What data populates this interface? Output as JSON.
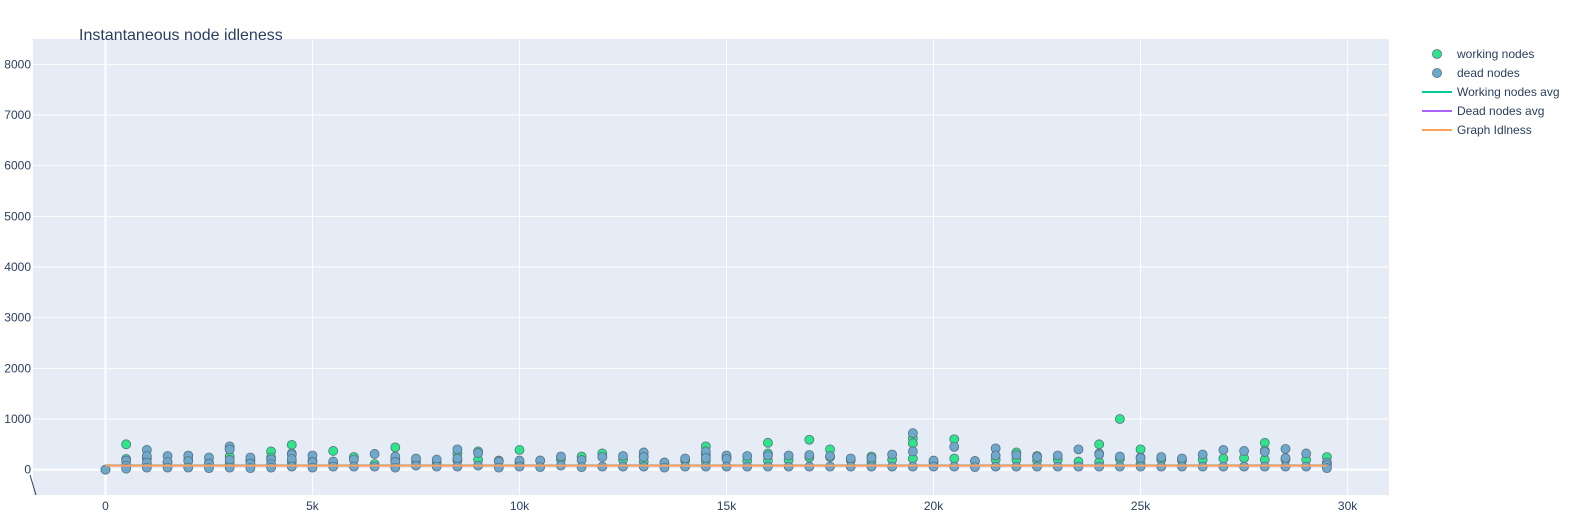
{
  "chart_data": {
    "type": "scatter",
    "title": "Instantaneous node idleness",
    "xlabel": "",
    "ylabel": "",
    "xlim": [
      -1750,
      31000
    ],
    "ylim": [
      -500,
      8500
    ],
    "x_ticks": [
      {
        "value": 0,
        "label": "0"
      },
      {
        "value": 5000,
        "label": "5k"
      },
      {
        "value": 10000,
        "label": "10k"
      },
      {
        "value": 15000,
        "label": "15k"
      },
      {
        "value": 20000,
        "label": "20k"
      },
      {
        "value": 25000,
        "label": "25k"
      },
      {
        "value": 30000,
        "label": "30k"
      }
    ],
    "y_ticks": [
      {
        "value": 0,
        "label": "0"
      },
      {
        "value": 1000,
        "label": "1000"
      },
      {
        "value": 2000,
        "label": "2000"
      },
      {
        "value": 3000,
        "label": "3000"
      },
      {
        "value": 4000,
        "label": "4000"
      },
      {
        "value": 5000,
        "label": "5000"
      },
      {
        "value": 6000,
        "label": "6000"
      },
      {
        "value": 7000,
        "label": "7000"
      },
      {
        "value": 8000,
        "label": "8000"
      }
    ],
    "grid": true,
    "legend_position": "top-right",
    "colors": {
      "plot_bg": "#e5ecf6",
      "grid": "#ffffff",
      "working": "#2ee58a",
      "dead": "#6ea9cc",
      "marker_edge": "#5a6e7e",
      "working_avg": "#00cc96",
      "dead_avg": "#ab63fa",
      "graph_idleness": "#ffa15a"
    },
    "series": [
      {
        "name": "working nodes",
        "mode": "markers",
        "x": [
          0,
          500,
          500,
          500,
          1000,
          1000,
          1500,
          2000,
          2500,
          3000,
          3000,
          3000,
          3500,
          4000,
          4000,
          4500,
          4500,
          4500,
          5000,
          5500,
          5500,
          6000,
          6500,
          7000,
          7000,
          7500,
          8000,
          8500,
          8500,
          9000,
          9000,
          9500,
          10000,
          10000,
          10500,
          11000,
          11500,
          12000,
          12500,
          13000,
          13000,
          13500,
          14000,
          14500,
          14500,
          14500,
          15000,
          15500,
          16000,
          16000,
          16000,
          16500,
          17000,
          17000,
          17500,
          17500,
          18000,
          18500,
          18500,
          19000,
          19500,
          19500,
          19500,
          20000,
          20500,
          20500,
          21000,
          21500,
          22000,
          22000,
          22500,
          22500,
          23000,
          23500,
          24000,
          24000,
          24000,
          24500,
          24500,
          25000,
          25000,
          25000,
          25500,
          26000,
          26500,
          27000,
          27500,
          28000,
          28000,
          28000,
          28500,
          29000,
          29500,
          29500
        ],
        "y": [
          0,
          500,
          210,
          90,
          220,
          110,
          150,
          200,
          140,
          420,
          260,
          120,
          180,
          360,
          240,
          490,
          320,
          150,
          180,
          370,
          140,
          250,
          110,
          440,
          200,
          160,
          140,
          320,
          180,
          360,
          200,
          180,
          390,
          140,
          180,
          200,
          260,
          320,
          200,
          260,
          160,
          140,
          180,
          460,
          300,
          170,
          240,
          180,
          530,
          320,
          180,
          190,
          590,
          240,
          400,
          250,
          190,
          260,
          150,
          200,
          620,
          520,
          220,
          150,
          600,
          220,
          170,
          200,
          340,
          200,
          270,
          180,
          200,
          160,
          500,
          320,
          150,
          1000,
          210,
          400,
          240,
          130,
          200,
          180,
          200,
          220,
          230,
          530,
          380,
          200,
          200,
          200,
          250,
          130
        ],
        "color": "#2ee58a"
      },
      {
        "name": "dead nodes",
        "mode": "markers",
        "x": [
          0,
          500,
          500,
          500,
          1000,
          1000,
          1000,
          1000,
          1500,
          1500,
          1500,
          2000,
          2000,
          2000,
          2500,
          2500,
          2500,
          3000,
          3000,
          3000,
          3000,
          3500,
          3500,
          3500,
          4000,
          4000,
          4000,
          4500,
          4500,
          4500,
          5000,
          5000,
          5000,
          5500,
          5500,
          6000,
          6000,
          6500,
          6500,
          7000,
          7000,
          7000,
          7500,
          7500,
          8000,
          8000,
          8500,
          8500,
          8500,
          9000,
          9000,
          9500,
          9500,
          10000,
          10000,
          10500,
          10500,
          11000,
          11000,
          11500,
          11500,
          12000,
          12000,
          12500,
          12500,
          13000,
          13000,
          13000,
          13500,
          13500,
          14000,
          14000,
          14500,
          14500,
          14500,
          15000,
          15000,
          15000,
          15500,
          15500,
          16000,
          16000,
          16500,
          16500,
          17000,
          17000,
          17500,
          17500,
          18000,
          18000,
          18500,
          18500,
          19000,
          19000,
          19500,
          19500,
          19500,
          20000,
          20000,
          20500,
          20500,
          21000,
          21000,
          21500,
          21500,
          21500,
          22000,
          22000,
          22500,
          22500,
          23000,
          23000,
          23500,
          23500,
          24000,
          24000,
          24500,
          24500,
          25000,
          25000,
          25500,
          25500,
          26000,
          26000,
          26500,
          26500,
          27000,
          27000,
          27500,
          27500,
          28000,
          28000,
          28500,
          28500,
          28500,
          29000,
          29000,
          29500,
          29500,
          29500
        ],
        "y": [
          0,
          180,
          80,
          20,
          390,
          270,
          140,
          40,
          270,
          150,
          40,
          280,
          170,
          40,
          240,
          120,
          30,
          460,
          400,
          190,
          40,
          240,
          120,
          30,
          200,
          110,
          40,
          300,
          210,
          60,
          280,
          150,
          40,
          160,
          60,
          200,
          60,
          310,
          60,
          260,
          150,
          40,
          220,
          80,
          200,
          60,
          400,
          220,
          60,
          330,
          80,
          160,
          40,
          180,
          60,
          180,
          50,
          260,
          80,
          190,
          50,
          250,
          60,
          270,
          60,
          340,
          250,
          60,
          140,
          40,
          220,
          60,
          360,
          230,
          60,
          280,
          210,
          60,
          270,
          60,
          280,
          60,
          280,
          60,
          290,
          60,
          270,
          60,
          220,
          60,
          230,
          60,
          300,
          60,
          720,
          360,
          60,
          180,
          60,
          450,
          60,
          170,
          50,
          420,
          280,
          60,
          290,
          60,
          250,
          60,
          280,
          60,
          400,
          60,
          300,
          60,
          260,
          60,
          230,
          60,
          250,
          60,
          220,
          60,
          300,
          60,
          390,
          60,
          370,
          60,
          350,
          60,
          410,
          230,
          60,
          320,
          60,
          140,
          90,
          30
        ],
        "color": "#6ea9cc"
      },
      {
        "name": "Working nodes avg",
        "mode": "lines",
        "x": [
          0,
          29500
        ],
        "y": [
          85,
          85
        ],
        "color": "#00cc96"
      },
      {
        "name": "Dead nodes avg",
        "mode": "lines",
        "x": [
          0,
          29500
        ],
        "y": [
          80,
          80
        ],
        "color": "#ab63fa"
      },
      {
        "name": "Graph Idlness",
        "mode": "lines",
        "x": [
          0,
          29500
        ],
        "y": [
          80,
          80
        ],
        "color": "#ffa15a"
      }
    ]
  }
}
